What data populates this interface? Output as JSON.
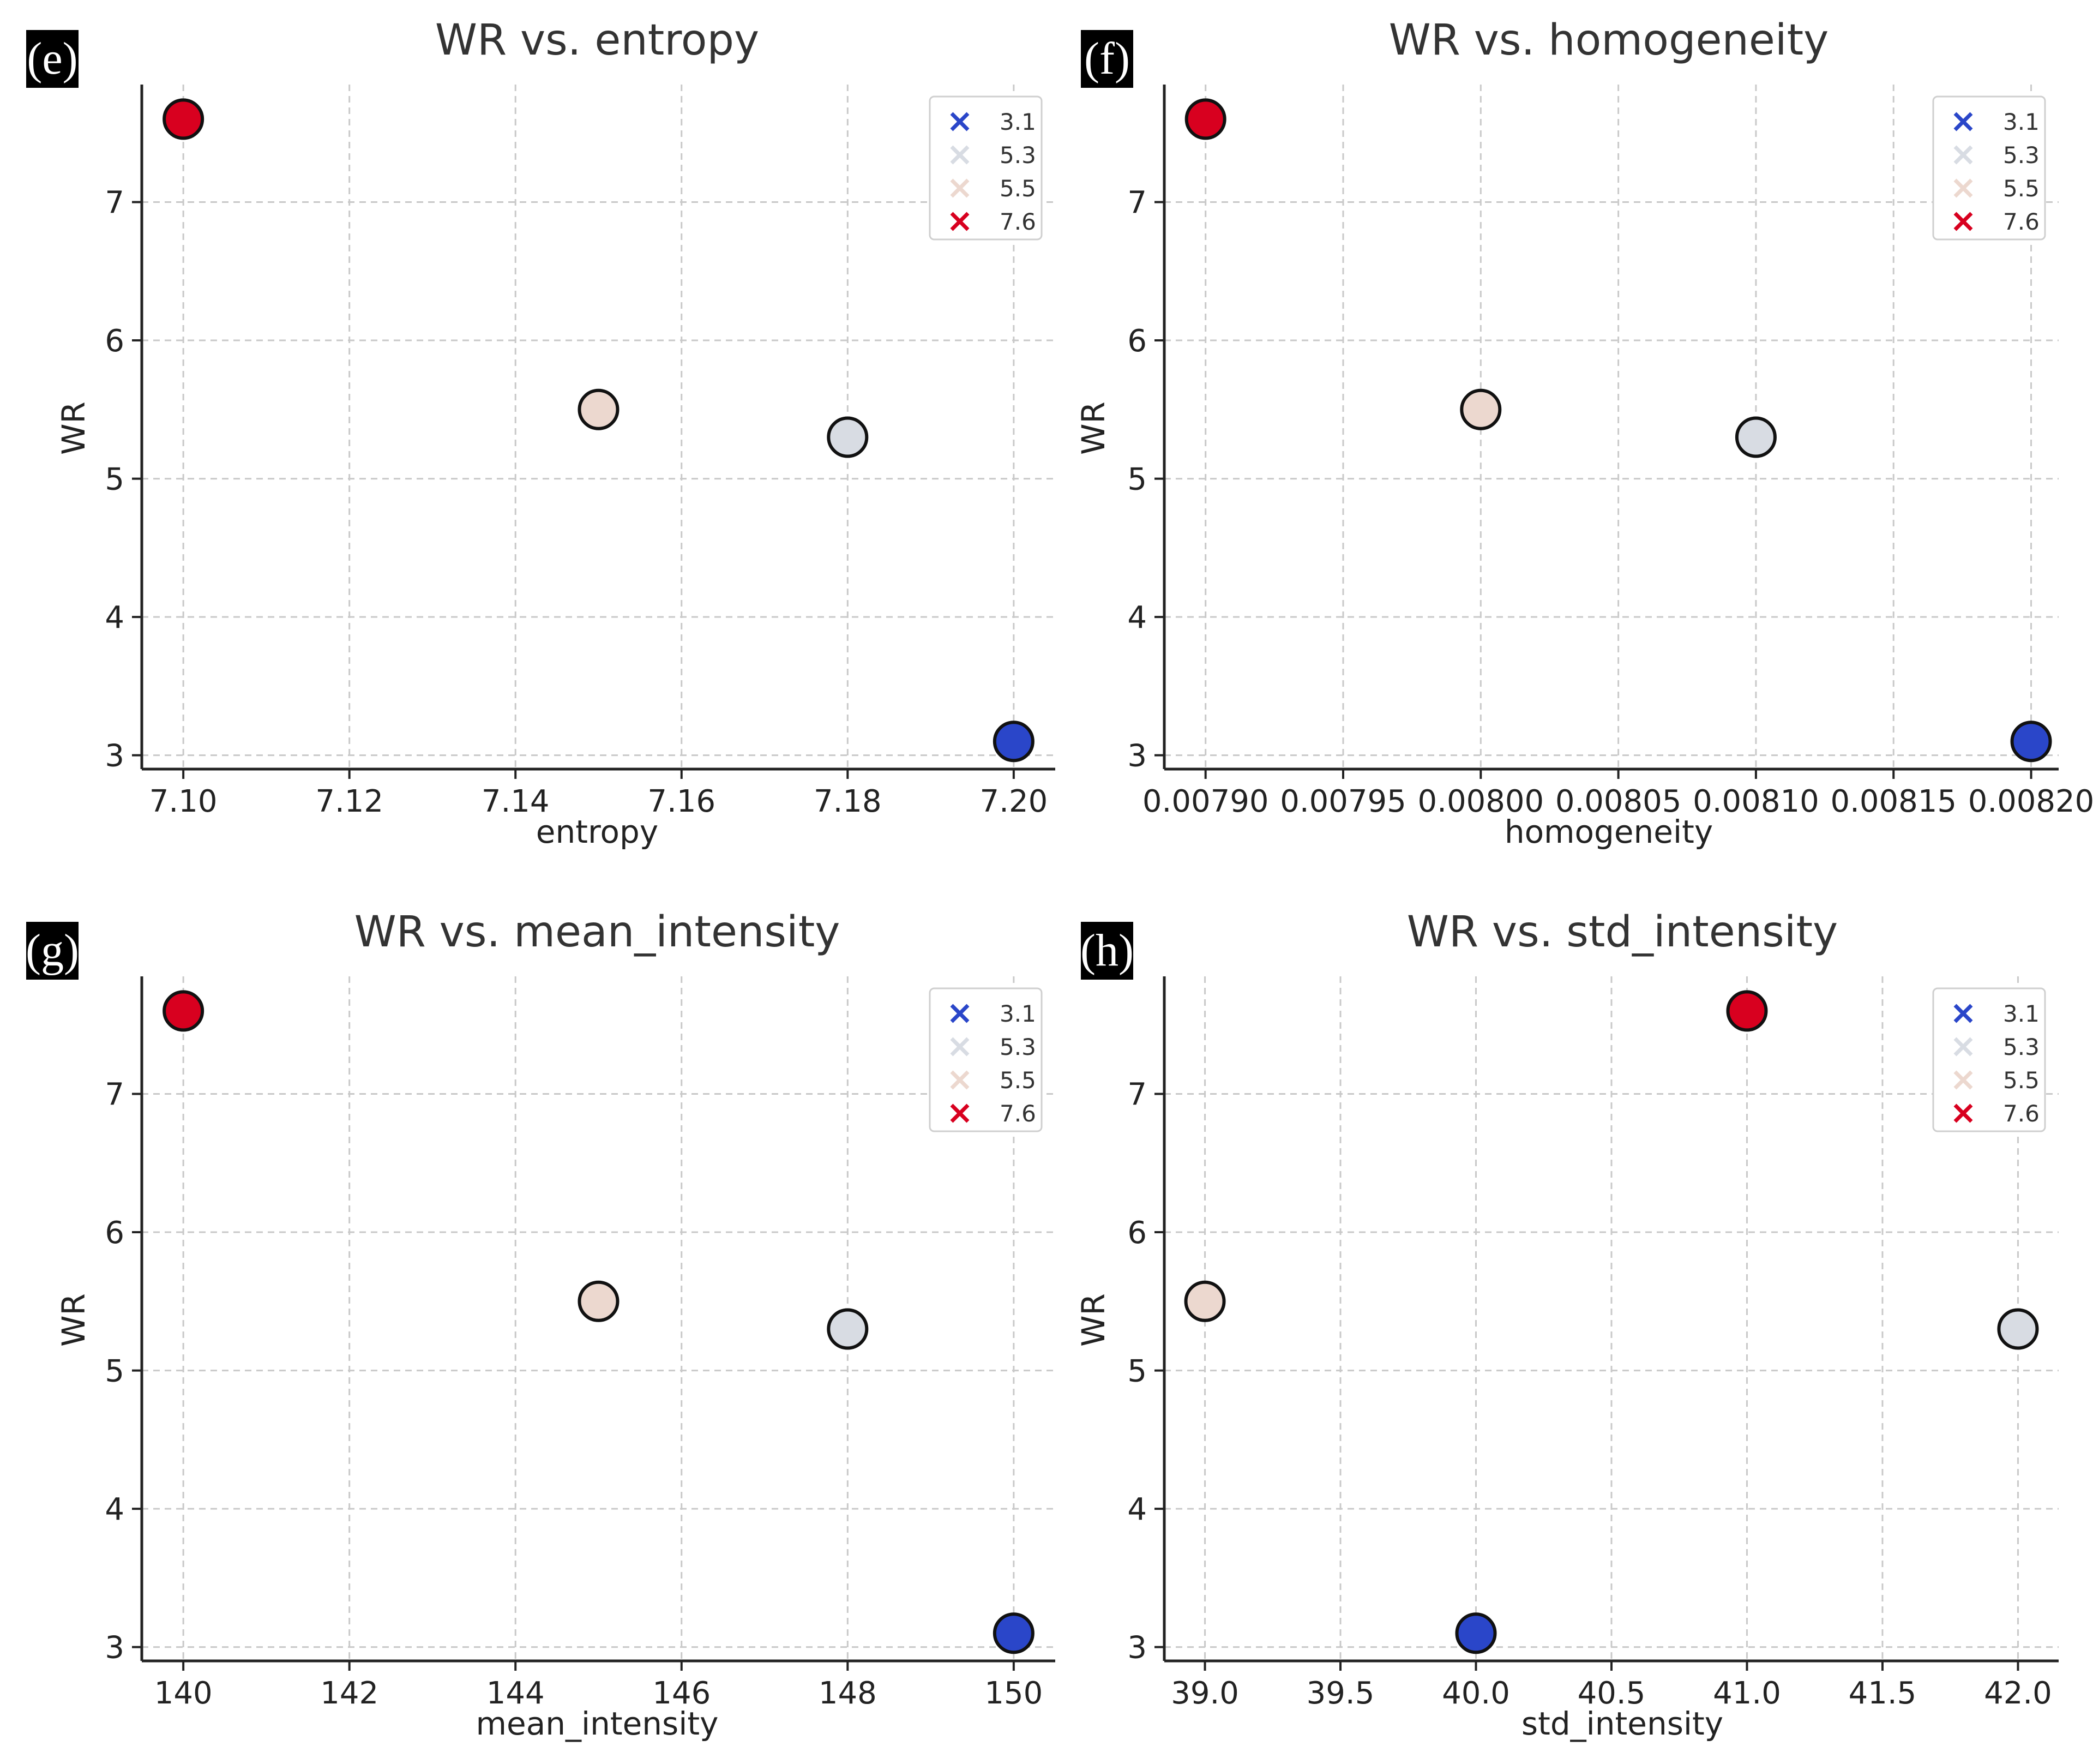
{
  "chart_data": [
    {
      "panel": "(e)",
      "type": "scatter",
      "title": "WR vs. entropy",
      "xlabel": "entropy",
      "ylabel": "WR",
      "xlim": [
        7.095,
        7.205
      ],
      "ylim": [
        2.9,
        7.85
      ],
      "xticks": [
        "7.10",
        "7.12",
        "7.14",
        "7.16",
        "7.18",
        "7.20"
      ],
      "xtick_values": [
        7.1,
        7.12,
        7.14,
        7.16,
        7.18,
        7.2
      ],
      "yticks": [
        "3",
        "4",
        "5",
        "6",
        "7"
      ],
      "ytick_values": [
        3,
        4,
        5,
        6,
        7
      ],
      "grid": true,
      "legend_position": "top-right",
      "points": [
        {
          "x": 7.2,
          "y": 3.1,
          "color": "#2a46c9"
        },
        {
          "x": 7.18,
          "y": 5.3,
          "color": "#d8dce3"
        },
        {
          "x": 7.15,
          "y": 5.5,
          "color": "#ecd8cf"
        },
        {
          "x": 7.1,
          "y": 7.6,
          "color": "#d8001f"
        }
      ],
      "legend": [
        {
          "label": "3.1",
          "color": "#2a46c9"
        },
        {
          "label": "5.3",
          "color": "#d8dce3"
        },
        {
          "label": "5.5",
          "color": "#ecd8cf"
        },
        {
          "label": "7.6",
          "color": "#d8001f"
        }
      ]
    },
    {
      "panel": "(f)",
      "type": "scatter",
      "title": "WR vs. homogeneity",
      "xlabel": "homogeneity",
      "ylabel": "WR",
      "xlim": [
        0.007885,
        0.00821
      ],
      "ylim": [
        2.9,
        7.85
      ],
      "xticks": [
        "0.00790",
        "0.00795",
        "0.00800",
        "0.00805",
        "0.00810",
        "0.00815",
        "0.00820"
      ],
      "xtick_values": [
        0.0079,
        0.00795,
        0.008,
        0.00805,
        0.0081,
        0.00815,
        0.0082
      ],
      "yticks": [
        "3",
        "4",
        "5",
        "6",
        "7"
      ],
      "ytick_values": [
        3,
        4,
        5,
        6,
        7
      ],
      "grid": true,
      "legend_position": "top-right",
      "points": [
        {
          "x": 0.0082,
          "y": 3.1,
          "color": "#2a46c9"
        },
        {
          "x": 0.0081,
          "y": 5.3,
          "color": "#d8dce3"
        },
        {
          "x": 0.008,
          "y": 5.5,
          "color": "#ecd8cf"
        },
        {
          "x": 0.0079,
          "y": 7.6,
          "color": "#d8001f"
        }
      ],
      "legend": [
        {
          "label": "3.1",
          "color": "#2a46c9"
        },
        {
          "label": "5.3",
          "color": "#d8dce3"
        },
        {
          "label": "5.5",
          "color": "#ecd8cf"
        },
        {
          "label": "7.6",
          "color": "#d8001f"
        }
      ]
    },
    {
      "panel": "(g)",
      "type": "scatter",
      "title": "WR vs. mean_intensity",
      "xlabel": "mean_intensity",
      "ylabel": "WR",
      "xlim": [
        139.5,
        150.5
      ],
      "ylim": [
        2.9,
        7.85
      ],
      "xticks": [
        "140",
        "142",
        "144",
        "146",
        "148",
        "150"
      ],
      "xtick_values": [
        140,
        142,
        144,
        146,
        148,
        150
      ],
      "yticks": [
        "3",
        "4",
        "5",
        "6",
        "7"
      ],
      "ytick_values": [
        3,
        4,
        5,
        6,
        7
      ],
      "grid": true,
      "legend_position": "top-right",
      "points": [
        {
          "x": 150,
          "y": 3.1,
          "color": "#2a46c9"
        },
        {
          "x": 148,
          "y": 5.3,
          "color": "#d8dce3"
        },
        {
          "x": 145,
          "y": 5.5,
          "color": "#ecd8cf"
        },
        {
          "x": 140,
          "y": 7.6,
          "color": "#d8001f"
        }
      ],
      "legend": [
        {
          "label": "3.1",
          "color": "#2a46c9"
        },
        {
          "label": "5.3",
          "color": "#d8dce3"
        },
        {
          "label": "5.5",
          "color": "#ecd8cf"
        },
        {
          "label": "7.6",
          "color": "#d8001f"
        }
      ]
    },
    {
      "panel": "(h)",
      "type": "scatter",
      "title": "WR vs. std_intensity",
      "xlabel": "std_intensity",
      "ylabel": "WR",
      "xlim": [
        38.85,
        42.15
      ],
      "ylim": [
        2.9,
        7.85
      ],
      "xticks": [
        "39.0",
        "39.5",
        "40.0",
        "40.5",
        "41.0",
        "41.5",
        "42.0"
      ],
      "xtick_values": [
        39.0,
        39.5,
        40.0,
        40.5,
        41.0,
        41.5,
        42.0
      ],
      "yticks": [
        "3",
        "4",
        "5",
        "6",
        "7"
      ],
      "ytick_values": [
        3,
        4,
        5,
        6,
        7
      ],
      "grid": true,
      "legend_position": "top-right",
      "points": [
        {
          "x": 40.0,
          "y": 3.1,
          "color": "#2a46c9"
        },
        {
          "x": 42.0,
          "y": 5.3,
          "color": "#d8dce3"
        },
        {
          "x": 39.0,
          "y": 5.5,
          "color": "#ecd8cf"
        },
        {
          "x": 41.0,
          "y": 7.6,
          "color": "#d8001f"
        }
      ],
      "legend": [
        {
          "label": "3.1",
          "color": "#2a46c9"
        },
        {
          "label": "5.3",
          "color": "#d8dce3"
        },
        {
          "label": "5.5",
          "color": "#ecd8cf"
        },
        {
          "label": "7.6",
          "color": "#d8001f"
        }
      ]
    }
  ]
}
